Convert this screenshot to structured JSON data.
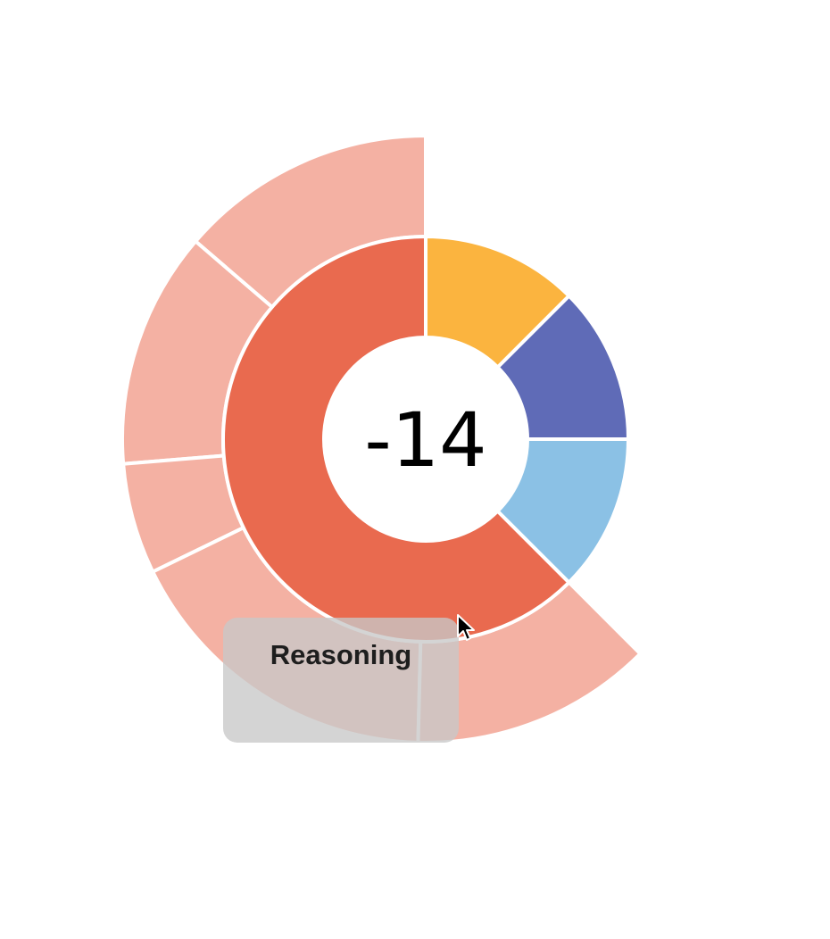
{
  "chart_data": {
    "type": "sunburst",
    "center_label": "-14",
    "inner_ring": [
      {
        "value": 62.5,
        "color": "#e96a4f"
      },
      {
        "value": 12.5,
        "color": "#8bc1e5"
      },
      {
        "value": 12.5,
        "color": "#5f6bb7"
      },
      {
        "value": 12.5,
        "color": "#fbb43f"
      }
    ],
    "outer_ring": [
      {
        "value": 13.7,
        "parent": 0,
        "color": "#f4b1a3"
      },
      {
        "value": 12.6,
        "parent": 0,
        "color": "#f4b1a3"
      },
      {
        "value": 5.9,
        "parent": 0,
        "color": "#f4b1a3"
      },
      {
        "value": 17.4,
        "parent": 0,
        "color": "#f4b1a3"
      },
      {
        "value": 12.9,
        "parent": 0,
        "color": "#f4b1a3"
      }
    ],
    "start_angle_deg": 0,
    "direction": "counterclockwise-from-top",
    "tooltip": {
      "label": "Reasoning"
    }
  },
  "colors": {
    "background": "#ffffff",
    "separator": "#ffffff",
    "tooltip_bg": "#c8c8c8",
    "tooltip_text": "#1e1e1e"
  },
  "icons": {
    "cursor": "arrow-pointer-icon"
  }
}
